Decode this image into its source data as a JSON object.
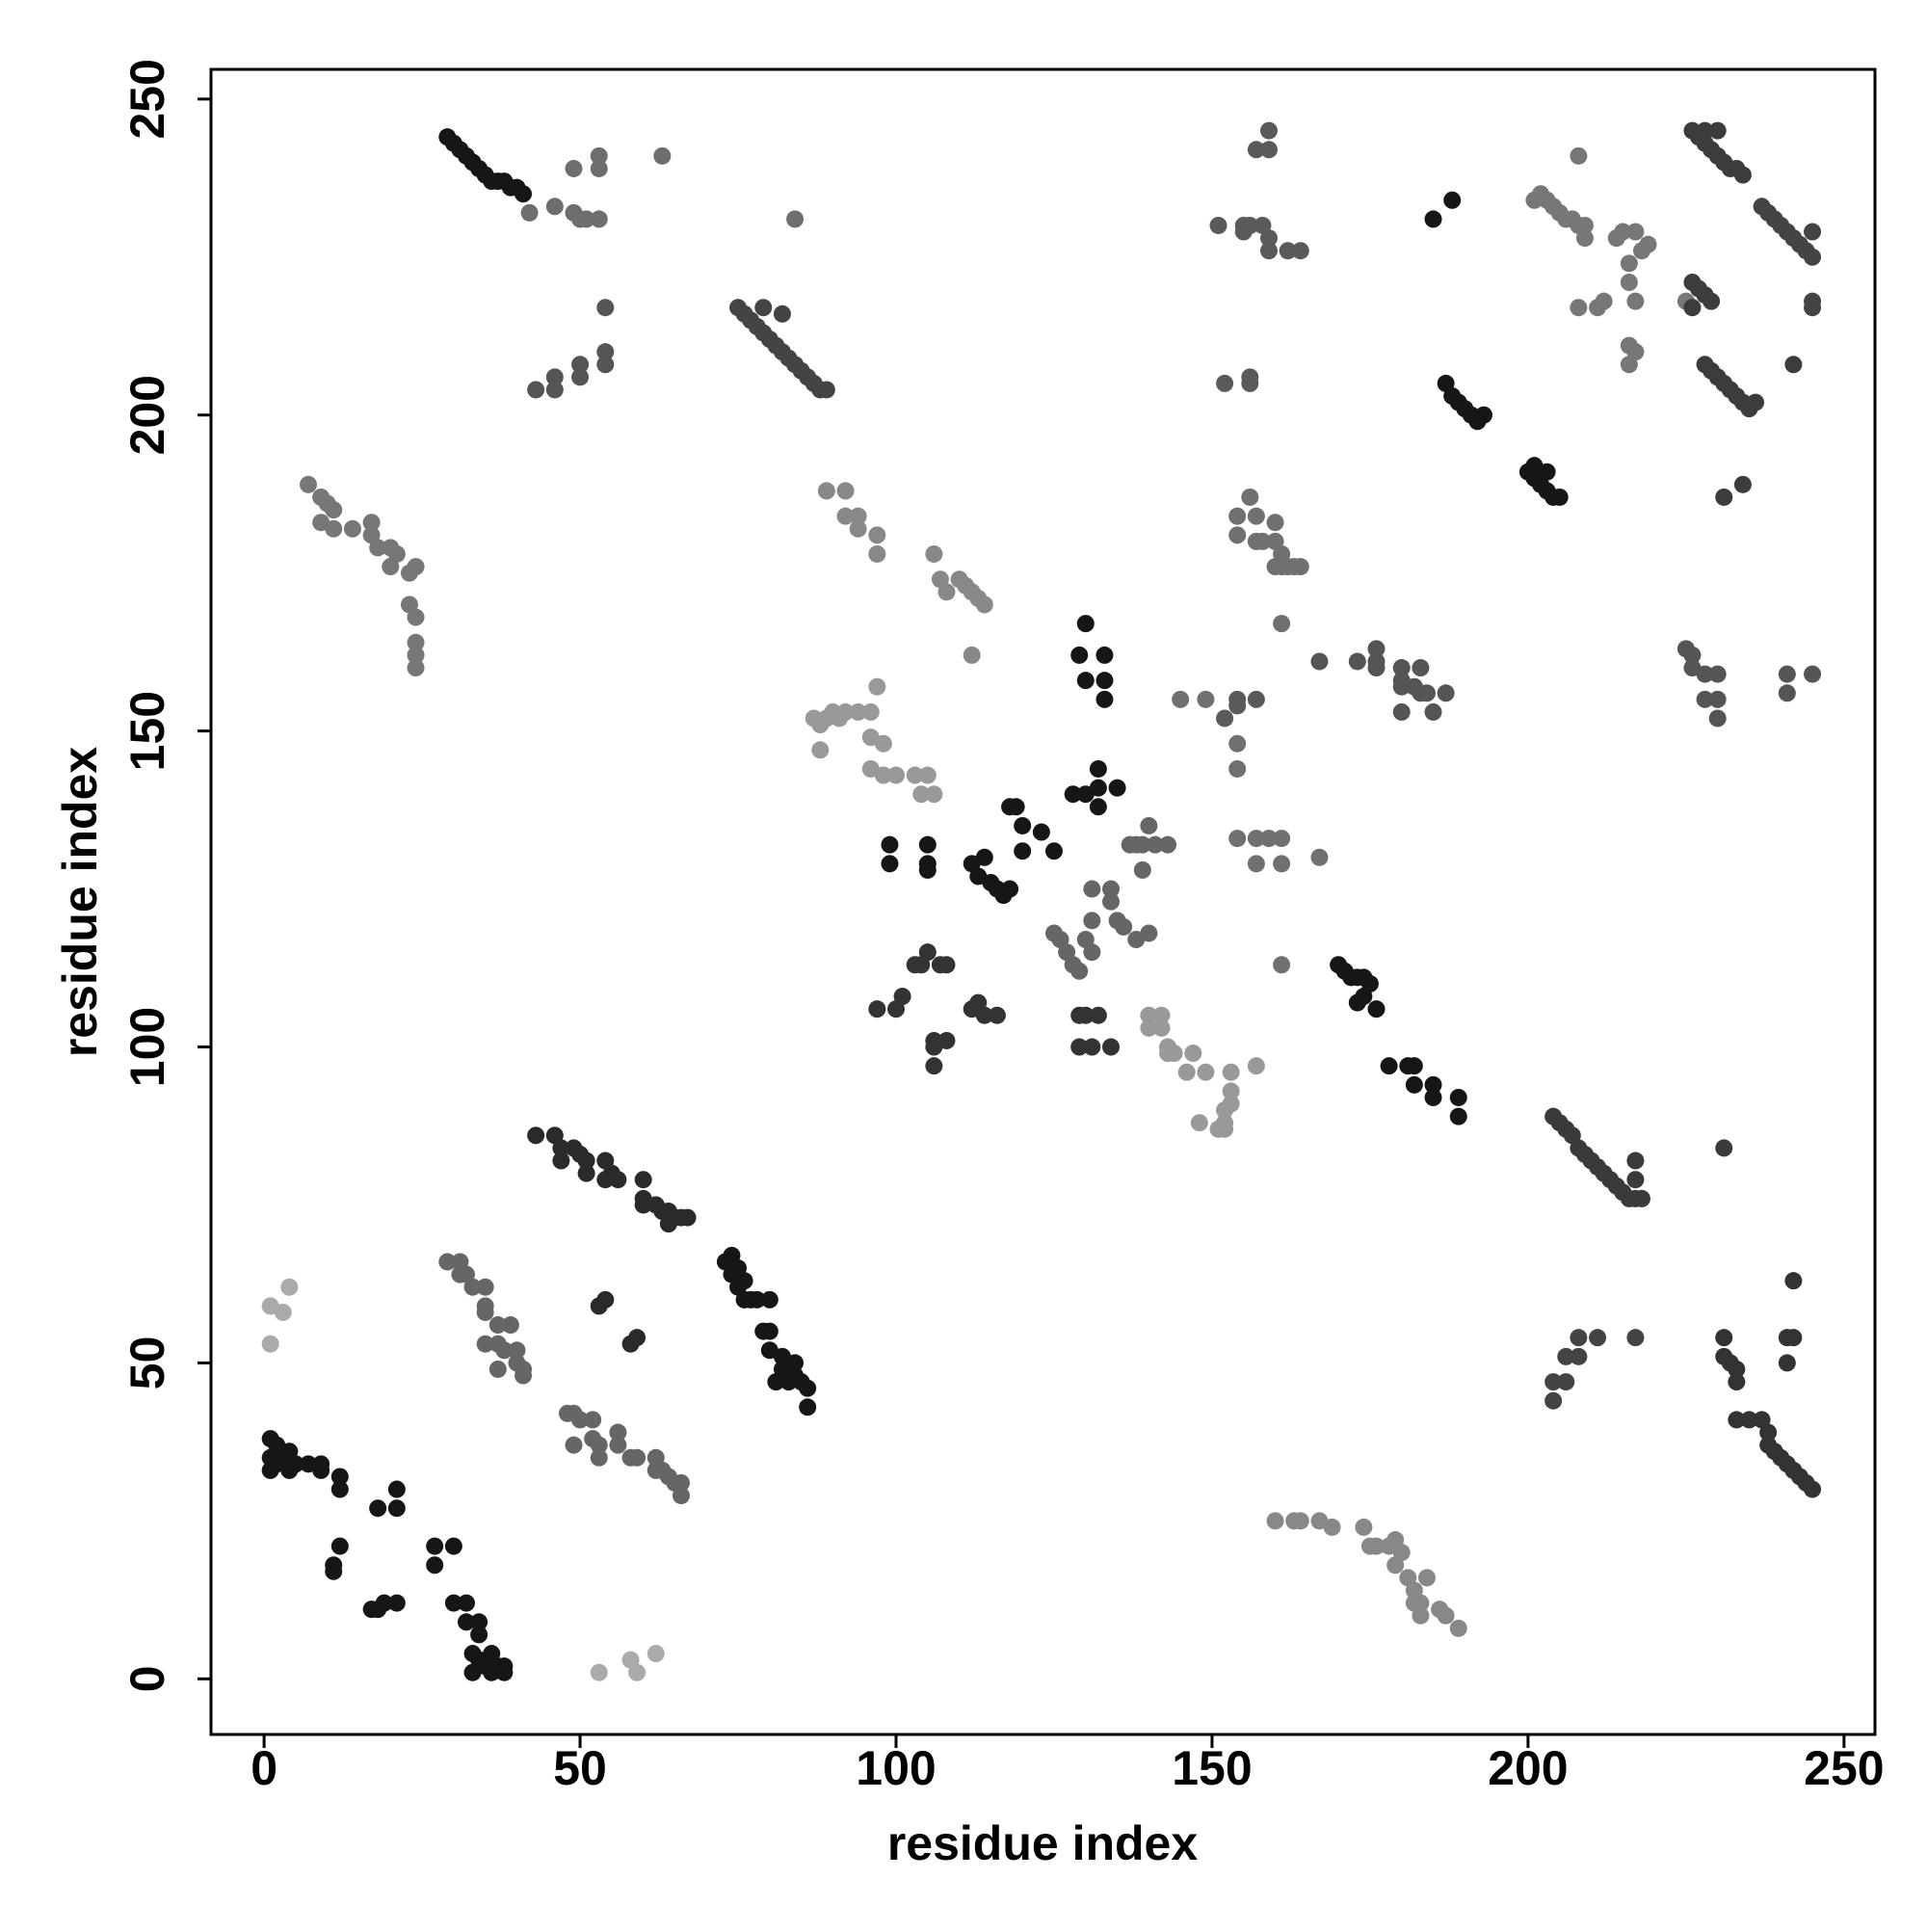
{
  "chart_data": {
    "type": "scatter",
    "x_label": "residue index",
    "y_label": "residue index",
    "xlim": [
      -8.4,
      254.9
    ],
    "ylim": [
      -8.8,
      254.7
    ],
    "xticks": [
      0,
      50,
      100,
      150,
      200,
      250
    ],
    "yticks": [
      0,
      50,
      100,
      150,
      200,
      250
    ],
    "grid": false,
    "series": [
      {
        "color": "#161616",
        "x": [
          29,
          30,
          31,
          32,
          33,
          34,
          35,
          36,
          37,
          38,
          39,
          40,
          41
        ],
        "y": [
          244,
          243,
          242,
          241,
          240,
          239,
          238,
          237,
          237,
          237,
          236,
          236,
          235
        ]
      },
      {
        "color": "#6e6e6e",
        "x": [
          42,
          46,
          49,
          50,
          51,
          53,
          49,
          53,
          53,
          63,
          84
        ],
        "y": [
          232,
          233,
          232,
          231,
          231,
          231,
          239,
          241,
          239,
          241,
          231
        ]
      },
      {
        "color": "#555555",
        "x": [
          54,
          54,
          54,
          43,
          46,
          46,
          50,
          50
        ],
        "y": [
          217,
          210,
          208,
          204,
          204,
          206,
          208,
          206
        ]
      },
      {
        "color": "#444444",
        "x": [
          75,
          76,
          77,
          78,
          79,
          80,
          81,
          82,
          83,
          84,
          85,
          86,
          87,
          88,
          89,
          82,
          79
        ],
        "y": [
          217,
          216,
          215,
          214,
          213,
          212,
          211,
          210,
          209,
          208,
          207,
          206,
          205,
          204,
          204,
          216,
          217
        ]
      },
      {
        "color": "#777777",
        "x": [
          7,
          9,
          10,
          11,
          9,
          11,
          14,
          17,
          17,
          18,
          20,
          21,
          20,
          23,
          24,
          23,
          24,
          24,
          24,
          24
        ],
        "y": [
          189,
          187,
          186,
          185,
          183,
          182,
          182,
          183,
          181,
          179,
          179,
          178,
          176,
          175,
          176,
          170,
          168,
          164,
          162,
          160
        ]
      },
      {
        "color": "#888888",
        "x": [
          89,
          92,
          92,
          94,
          94,
          97,
          97,
          106,
          107,
          108,
          110,
          111,
          112,
          113,
          114,
          112
        ],
        "y": [
          188,
          188,
          184,
          182,
          184,
          181,
          178,
          178,
          174,
          172,
          174,
          173,
          172,
          171,
          170,
          162
        ]
      },
      {
        "color": "#999999",
        "x": [
          87,
          88,
          89,
          90,
          91,
          92,
          94,
          96,
          97,
          88,
          96,
          98,
          96,
          98,
          100,
          103,
          104,
          105,
          106
        ],
        "y": [
          152,
          151,
          152,
          153,
          152,
          153,
          153,
          153,
          157,
          147,
          149,
          148,
          144,
          143,
          143,
          143,
          140,
          143,
          140
        ]
      },
      {
        "color": "#161616",
        "x": [
          99,
          99,
          105,
          105,
          105,
          112,
          114,
          113,
          115,
          116,
          117,
          118,
          118,
          120,
          120,
          119,
          123,
          125,
          130,
          128,
          132,
          132,
          132,
          135,
          129,
          130,
          133,
          133,
          133,
          130
        ],
        "y": [
          132,
          129,
          132,
          129,
          128,
          129,
          130,
          127,
          126,
          125,
          124,
          125,
          138,
          135,
          131,
          138,
          134,
          131,
          140,
          140,
          141,
          144,
          138,
          141,
          162,
          167,
          162,
          158,
          155,
          158
        ]
      },
      {
        "color": "#666666",
        "x": [
          137,
          138,
          139,
          140,
          139,
          141,
          143,
          135,
          134,
          131,
          131,
          130,
          126,
          125,
          127,
          128,
          129,
          131,
          136,
          138,
          140,
          134
        ],
        "y": [
          132,
          132,
          132,
          135,
          128,
          132,
          132,
          120,
          125,
          125,
          120,
          117,
          117,
          118,
          115,
          113,
          112,
          115,
          119,
          117,
          118,
          123
        ]
      },
      {
        "color": "#333333",
        "x": [
          97,
          100,
          101,
          103,
          104,
          105,
          107,
          108,
          112,
          113,
          114,
          116,
          106,
          108,
          106,
          106,
          129,
          130,
          129,
          131,
          132,
          134
        ],
        "y": [
          106,
          106,
          108,
          113,
          113,
          115,
          113,
          113,
          106,
          107,
          105,
          105,
          101,
          101,
          100,
          97,
          105,
          105,
          100,
          100,
          105,
          100
        ]
      },
      {
        "color": "#999999",
        "x": [
          140,
          140,
          142,
          142,
          143,
          143,
          144,
          146,
          147,
          149,
          148,
          152,
          151,
          152,
          152,
          153,
          153,
          153,
          157
        ],
        "y": [
          105,
          103,
          105,
          103,
          100,
          99,
          99,
          96,
          99,
          96,
          88,
          87,
          87,
          88,
          90,
          91,
          93,
          96,
          97
        ]
      },
      {
        "color": "#707070",
        "x": [
          154,
          154,
          156,
          157,
          157,
          158,
          160,
          160,
          160,
          161,
          161,
          163,
          161,
          162,
          164,
          145,
          149,
          154,
          154,
          154,
          157,
          157,
          159,
          161,
          161,
          167,
          161
        ],
        "y": [
          184,
          181,
          187,
          184,
          180,
          180,
          183,
          180,
          176,
          178,
          176,
          176,
          167,
          176,
          176,
          155,
          155,
          148,
          144,
          133,
          133,
          129,
          133,
          133,
          129,
          130,
          113
        ]
      },
      {
        "color": "#161616",
        "x": [
          170,
          171,
          172,
          173,
          174,
          175,
          174,
          173,
          176,
          178,
          181,
          182,
          182,
          185,
          185,
          189,
          189
        ],
        "y": [
          113,
          112,
          111,
          111,
          111,
          110,
          108,
          107,
          106,
          97,
          97,
          97,
          94,
          92,
          94,
          92,
          89
        ]
      },
      {
        "color": "#555555",
        "x": [
          167,
          173,
          176,
          176,
          176,
          180,
          180,
          180,
          180,
          182,
          183,
          183,
          184,
          185,
          187
        ],
        "y": [
          161,
          161,
          160,
          161,
          163,
          160,
          158,
          157,
          153,
          157,
          160,
          156,
          156,
          153,
          156
        ]
      },
      {
        "color": "#888888",
        "x": [
          160,
          163,
          164,
          167,
          169,
          174,
          175,
          176,
          178,
          179,
          179,
          180,
          181,
          182,
          182,
          183,
          183,
          184,
          186,
          187,
          189
        ],
        "y": [
          25,
          25,
          25,
          25,
          24,
          24,
          21,
          21,
          21,
          22,
          18,
          20,
          16,
          14,
          12,
          10,
          12,
          16,
          11,
          10,
          8
        ]
      },
      {
        "color": "#3a3a3a",
        "x": [
          204,
          205,
          206,
          207,
          208,
          209,
          210,
          211,
          212,
          213,
          214,
          215,
          216,
          217,
          218,
          217,
          217,
          231
        ],
        "y": [
          89,
          88,
          87,
          86,
          84,
          83,
          82,
          81,
          80,
          79,
          78,
          77,
          76,
          76,
          76,
          82,
          79,
          84
        ]
      },
      {
        "color": "#444444",
        "x": [
          204,
          204,
          206,
          206,
          208,
          208,
          211,
          217
        ],
        "y": [
          47,
          44,
          47,
          51,
          51,
          54,
          54,
          54
        ]
      },
      {
        "color": "#333333",
        "x": [
          231,
          231,
          232,
          233,
          233,
          233,
          235,
          237,
          238,
          238,
          239,
          240,
          241,
          242,
          243,
          244,
          245,
          241,
          242,
          241,
          242
        ],
        "y": [
          54,
          51,
          50,
          47,
          49,
          41,
          41,
          41,
          39,
          37,
          36,
          35,
          34,
          33,
          32,
          31,
          30,
          54,
          54,
          50,
          63
        ]
      },
      {
        "color": "#5a5a5a",
        "x": [
          152,
          156,
          156,
          151,
          155,
          155,
          156,
          158,
          159,
          159,
          162,
          164,
          157,
          159,
          159,
          152,
          154,
          154,
          157
        ],
        "y": [
          205,
          205,
          206,
          230,
          229,
          230,
          230,
          230,
          228,
          226,
          226,
          226,
          242,
          242,
          245,
          152,
          154,
          155,
          155
        ]
      },
      {
        "color": "#161616",
        "x": [
          185,
          188,
          201,
          202,
          203,
          204,
          205,
          200,
          201,
          203,
          187,
          188,
          189,
          190,
          191,
          192,
          193
        ],
        "y": [
          231,
          234,
          190,
          189,
          188,
          187,
          187,
          191,
          192,
          191,
          205,
          203,
          202,
          201,
          200,
          199,
          200
        ]
      },
      {
        "color": "#777777",
        "x": [
          201,
          202,
          203,
          204,
          205,
          206,
          207,
          208,
          209,
          209,
          208,
          211,
          212,
          208,
          214,
          215,
          217,
          218,
          219,
          216,
          216,
          217,
          216,
          217,
          216,
          225
        ],
        "y": [
          234,
          235,
          234,
          233,
          232,
          231,
          231,
          230,
          230,
          228,
          241,
          217,
          218,
          217,
          228,
          229,
          229,
          226,
          227,
          224,
          221,
          218,
          211,
          210,
          208,
          218
        ]
      },
      {
        "color": "#3c3c3c",
        "x": [
          226,
          227,
          228,
          229,
          230,
          231,
          232,
          233,
          234,
          228,
          230,
          226,
          227,
          228,
          229,
          226,
          228,
          229,
          230,
          231,
          232,
          233,
          234,
          235,
          236,
          242,
          234,
          231
        ],
        "y": [
          245,
          244,
          243,
          242,
          241,
          240,
          239,
          239,
          238,
          245,
          245,
          221,
          220,
          219,
          218,
          217,
          208,
          207,
          206,
          205,
          204,
          203,
          202,
          201,
          202,
          208,
          189,
          187
        ]
      },
      {
        "color": "#444444",
        "x": [
          237,
          238,
          239,
          240,
          241,
          242,
          243,
          244,
          245,
          245,
          245,
          245
        ],
        "y": [
          233,
          232,
          231,
          230,
          229,
          228,
          227,
          226,
          225,
          229,
          217,
          218
        ]
      },
      {
        "color": "#555555",
        "x": [
          225,
          226,
          228,
          228,
          230,
          230,
          230,
          241,
          241,
          245,
          226
        ],
        "y": [
          163,
          160,
          159,
          155,
          159,
          155,
          152,
          159,
          156,
          159,
          162
        ]
      },
      {
        "color": "#161616",
        "x": [
          1,
          2,
          1,
          2,
          3,
          4,
          5,
          4,
          1,
          7,
          9,
          9,
          12,
          12,
          11,
          11,
          12,
          18,
          17,
          19,
          21,
          18,
          21,
          21,
          27,
          30,
          27,
          30,
          32,
          32,
          34,
          34,
          33,
          34,
          35,
          36,
          36,
          37,
          38,
          38,
          33
        ],
        "y": [
          38,
          37,
          35,
          34,
          35,
          36,
          34,
          33,
          33,
          34,
          33,
          34,
          32,
          30,
          18,
          17,
          21,
          11,
          11,
          12,
          12,
          27,
          27,
          30,
          21,
          21,
          18,
          12,
          12,
          9,
          9,
          7,
          4,
          3,
          2,
          4,
          1,
          2,
          2,
          1,
          1
        ]
      },
      {
        "color": "#aaaaaa",
        "x": [
          1,
          1,
          3,
          4
        ],
        "y": [
          53,
          59,
          58,
          62
        ]
      },
      {
        "color": "#666666",
        "x": [
          29,
          31,
          31,
          32,
          33,
          35,
          35,
          35,
          35,
          37,
          38,
          37,
          39,
          37,
          40,
          41,
          41,
          40
        ],
        "y": [
          66,
          66,
          64,
          64,
          62,
          62,
          59,
          58,
          53,
          53,
          52,
          56,
          56,
          49,
          52,
          49,
          48,
          50
        ]
      },
      {
        "color": "#2a2a2a",
        "x": [
          43,
          46,
          47,
          47,
          49,
          50,
          51,
          51,
          54,
          54,
          56,
          55,
          60,
          60,
          60,
          62,
          63,
          64,
          64,
          65,
          66,
          67,
          53,
          54,
          58,
          59
        ],
        "y": [
          86,
          86,
          84,
          82,
          84,
          83,
          82,
          80,
          82,
          79,
          79,
          80,
          79,
          76,
          75,
          75,
          74,
          74,
          72,
          73,
          73,
          73,
          59,
          60,
          53,
          54
        ]
      },
      {
        "color": "#161616",
        "x": [
          73,
          74,
          74,
          75,
          76,
          75,
          76,
          77,
          78,
          80,
          79,
          80,
          80,
          82,
          82,
          83,
          84,
          85,
          86,
          86,
          81,
          84
        ],
        "y": [
          66,
          67,
          64,
          65,
          63,
          62,
          60,
          60,
          60,
          60,
          55,
          55,
          52,
          51,
          49,
          47,
          50,
          47,
          46,
          43,
          47,
          48
        ]
      },
      {
        "color": "#666666",
        "x": [
          48,
          49,
          50,
          49,
          52,
          52,
          53,
          53,
          56,
          56,
          58,
          59,
          62,
          62,
          63,
          64,
          65,
          66,
          66
        ],
        "y": [
          42,
          42,
          41,
          37,
          41,
          38,
          37,
          35,
          39,
          37,
          35,
          35,
          35,
          33,
          33,
          32,
          31,
          31,
          29
        ]
      },
      {
        "color": "#aaaaaa",
        "x": [
          53,
          58,
          59,
          62
        ],
        "y": [
          1,
          3,
          1,
          4
        ]
      }
    ]
  }
}
